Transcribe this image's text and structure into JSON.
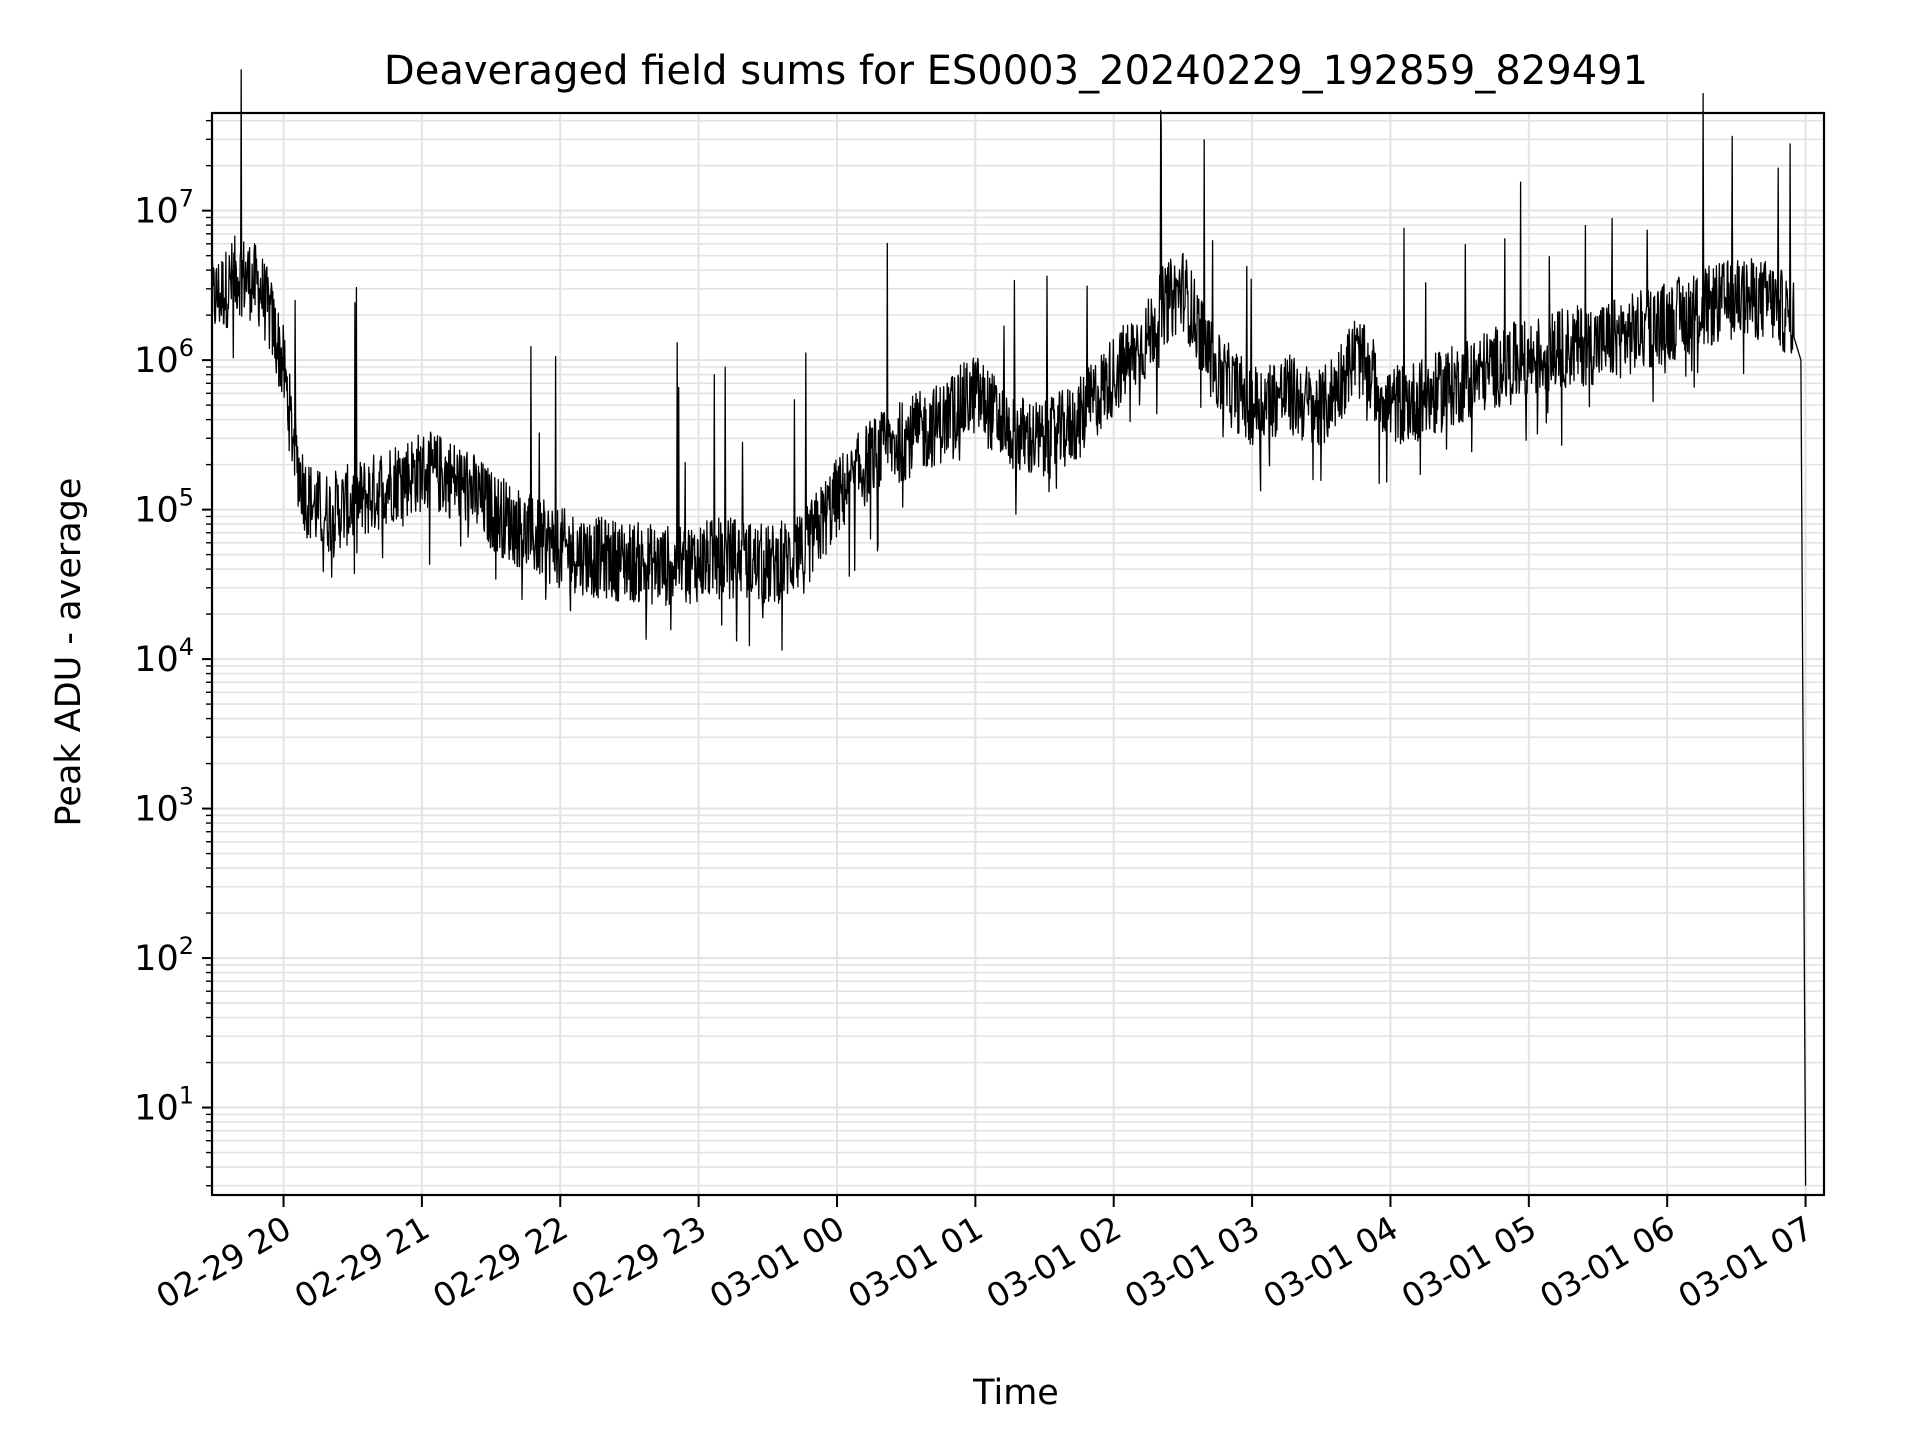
{
  "chart_data": {
    "type": "line",
    "title": "Deaveraged field sums for ES0003_20240229_192859_829491",
    "xlabel": "Time",
    "ylabel": "Peak ADU - average",
    "yscale": "log",
    "ylim": [
      2.6,
      45000000
    ],
    "xlim": [
      "2024-02-29 19:28:59",
      "2024-03-01 07:08:00"
    ],
    "grid": "major and minor, light gray",
    "legend": "none",
    "line_color": "#000000",
    "x_ticks": [
      {
        "time": "2024-02-29 20:00",
        "label": "02-29 20"
      },
      {
        "time": "2024-02-29 21:00",
        "label": "02-29 21"
      },
      {
        "time": "2024-02-29 22:00",
        "label": "02-29 22"
      },
      {
        "time": "2024-02-29 23:00",
        "label": "02-29 23"
      },
      {
        "time": "2024-03-01 00:00",
        "label": "03-01 00"
      },
      {
        "time": "2024-03-01 01:00",
        "label": "03-01 01"
      },
      {
        "time": "2024-03-01 02:00",
        "label": "03-01 02"
      },
      {
        "time": "2024-03-01 03:00",
        "label": "03-01 03"
      },
      {
        "time": "2024-03-01 04:00",
        "label": "03-01 04"
      },
      {
        "time": "2024-03-01 05:00",
        "label": "03-01 05"
      },
      {
        "time": "2024-03-01 06:00",
        "label": "03-01 06"
      },
      {
        "time": "2024-03-01 07:00",
        "label": "03-01 07"
      }
    ],
    "y_ticks": [
      {
        "value": 10,
        "base": "10",
        "exp": "1"
      },
      {
        "value": 100,
        "base": "10",
        "exp": "2"
      },
      {
        "value": 1000,
        "base": "10",
        "exp": "3"
      },
      {
        "value": 10000,
        "base": "10",
        "exp": "4"
      },
      {
        "value": 100000,
        "base": "10",
        "exp": "5"
      },
      {
        "value": 1000000,
        "base": "10",
        "exp": "6"
      },
      {
        "value": 10000000,
        "base": "10",
        "exp": "7"
      }
    ],
    "series": [
      {
        "x": [
          "2024-02-29 19:29",
          "2024-02-29 19:35",
          "2024-02-29 19:40",
          "2024-02-29 19:45",
          "2024-02-29 19:50",
          "2024-02-29 19:55",
          "2024-02-29 20:00",
          "2024-02-29 20:03",
          "2024-02-29 20:06",
          "2024-02-29 20:10",
          "2024-02-29 20:15",
          "2024-02-29 20:20",
          "2024-02-29 20:30",
          "2024-02-29 20:40",
          "2024-02-29 20:45",
          "2024-02-29 20:50",
          "2024-02-29 21:00",
          "2024-02-29 21:10",
          "2024-02-29 21:20",
          "2024-02-29 21:30",
          "2024-02-29 21:40",
          "2024-02-29 21:45",
          "2024-02-29 22:00",
          "2024-02-29 22:15",
          "2024-02-29 22:30",
          "2024-02-29 22:45",
          "2024-02-29 23:00",
          "2024-02-29 23:15",
          "2024-02-29 23:30",
          "2024-02-29 23:45",
          "2024-03-01 00:00",
          "2024-03-01 00:15",
          "2024-03-01 00:30",
          "2024-03-01 00:45",
          "2024-03-01 01:00",
          "2024-03-01 01:15",
          "2024-03-01 01:30",
          "2024-03-01 01:45",
          "2024-03-01 02:00",
          "2024-03-01 02:15",
          "2024-03-01 02:20",
          "2024-03-01 02:30",
          "2024-03-01 02:45",
          "2024-03-01 03:00",
          "2024-03-01 03:15",
          "2024-03-01 03:30",
          "2024-03-01 03:45",
          "2024-03-01 04:00",
          "2024-03-01 04:15",
          "2024-03-01 04:30",
          "2024-03-01 04:45",
          "2024-03-01 05:00",
          "2024-03-01 05:15",
          "2024-03-01 05:30",
          "2024-03-01 05:45",
          "2024-03-01 06:00",
          "2024-03-01 06:15",
          "2024-03-01 06:30",
          "2024-03-01 06:45",
          "2024-03-01 06:55",
          "2024-03-01 06:58",
          "2024-03-01 07:00"
        ],
        "y": [
          2500000,
          3000000,
          3800000,
          3500000,
          3000000,
          1800000,
          900000,
          400000,
          200000,
          120000,
          100000,
          95000,
          110000,
          130000,
          150000,
          160000,
          180000,
          170000,
          140000,
          100000,
          80000,
          70000,
          55000,
          48000,
          45000,
          42000,
          45000,
          48000,
          42000,
          50000,
          120000,
          220000,
          300000,
          380000,
          600000,
          330000,
          280000,
          400000,
          800000,
          1400000,
          2200000,
          3000000,
          800000,
          500000,
          600000,
          450000,
          1100000,
          500000,
          550000,
          700000,
          900000,
          1000000,
          1200000,
          1300000,
          1500000,
          1800000,
          2200000,
          2600000,
          2500000,
          1800000,
          1000000,
          3
        ]
      }
    ]
  }
}
